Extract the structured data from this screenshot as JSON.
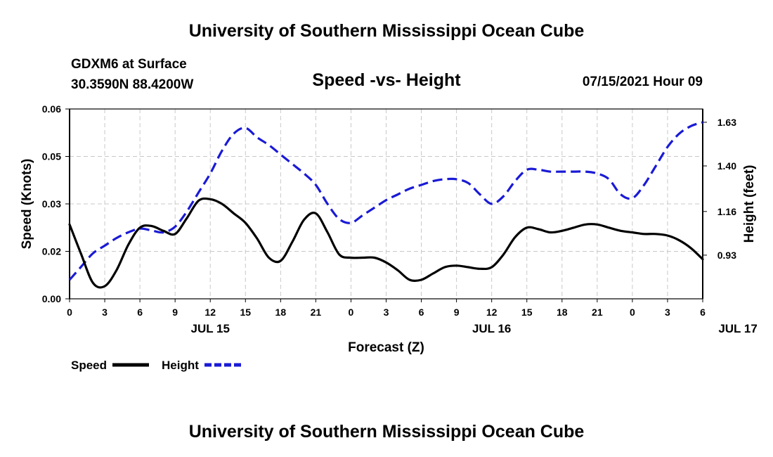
{
  "header": {
    "title": "University of Southern Mississippi Ocean Cube",
    "station": "GDXM6 at Surface",
    "coords": "30.3590N  88.4200W",
    "subtitle": "Speed -vs- Height",
    "datetime": "07/15/2021 Hour 09"
  },
  "footer": {
    "title": "University of Southern Mississippi Ocean Cube"
  },
  "chart_data": {
    "type": "line",
    "title": "Speed -vs- Height",
    "xlabel": "Forecast (Z)",
    "ylabel_left": "Speed (Knots)",
    "ylabel_right": "Height (feet)",
    "x_tick_labels": [
      "0",
      "3",
      "6",
      "9",
      "12",
      "15",
      "18",
      "21",
      "0",
      "3",
      "6",
      "9",
      "12",
      "15",
      "18",
      "21",
      "0",
      "3",
      "6"
    ],
    "day_labels": [
      {
        "label": "JUL 15",
        "hour": 12
      },
      {
        "label": "JUL 16",
        "hour": 36
      },
      {
        "label": "JUL 17",
        "hour": 57
      }
    ],
    "x_range": [
      0,
      54
    ],
    "y_left_ticks": [
      "0.00",
      "0.02",
      "0.03",
      "0.05",
      "0.06"
    ],
    "y_left_range": [
      0,
      0.06
    ],
    "y_right_ticks": [
      "0.93",
      "1.16",
      "1.40",
      "1.63"
    ],
    "y_right_range": [
      0.7,
      1.7
    ],
    "grid": true,
    "legend_position": "bottom-left",
    "series": [
      {
        "name": "Speed",
        "axis": "left",
        "color": "#000000",
        "dash": "solid",
        "x": [
          0,
          1,
          2,
          3,
          4,
          5,
          6,
          7,
          8,
          9,
          10,
          11,
          12,
          13,
          14,
          15,
          16,
          17,
          18,
          19,
          20,
          21,
          22,
          23,
          24,
          25,
          26,
          27,
          28,
          29,
          30,
          31,
          32,
          33,
          34,
          35,
          36,
          37,
          38,
          39,
          40,
          41,
          42,
          43,
          44,
          45,
          46,
          47,
          48,
          49,
          50,
          51,
          52,
          53,
          54
        ],
        "values": [
          0.0235,
          0.014,
          0.005,
          0.004,
          0.009,
          0.017,
          0.0225,
          0.023,
          0.0215,
          0.0205,
          0.0255,
          0.031,
          0.0315,
          0.03,
          0.027,
          0.024,
          0.019,
          0.013,
          0.012,
          0.018,
          0.025,
          0.027,
          0.021,
          0.014,
          0.013,
          0.013,
          0.013,
          0.0115,
          0.009,
          0.006,
          0.006,
          0.008,
          0.01,
          0.0105,
          0.01,
          0.0095,
          0.01,
          0.014,
          0.0195,
          0.0225,
          0.022,
          0.021,
          0.0215,
          0.0225,
          0.0235,
          0.0235,
          0.0225,
          0.0215,
          0.021,
          0.0205,
          0.0205,
          0.02,
          0.0185,
          0.016,
          0.0125
        ]
      },
      {
        "name": "Height",
        "axis": "right",
        "color": "#1a1ad6",
        "dash": "dashed",
        "x": [
          0,
          1,
          2,
          3,
          4,
          5,
          6,
          7,
          8,
          9,
          10,
          11,
          12,
          13,
          14,
          15,
          16,
          17,
          18,
          19,
          20,
          21,
          22,
          23,
          24,
          25,
          26,
          27,
          28,
          29,
          30,
          31,
          32,
          33,
          34,
          35,
          36,
          37,
          38,
          39,
          40,
          41,
          42,
          43,
          44,
          45,
          46,
          47,
          48,
          49,
          50,
          51,
          52,
          53,
          54
        ],
        "values": [
          0.8,
          0.87,
          0.94,
          0.98,
          1.02,
          1.05,
          1.07,
          1.06,
          1.05,
          1.08,
          1.16,
          1.26,
          1.36,
          1.48,
          1.57,
          1.6,
          1.55,
          1.51,
          1.46,
          1.41,
          1.36,
          1.3,
          1.2,
          1.12,
          1.1,
          1.14,
          1.18,
          1.22,
          1.25,
          1.28,
          1.3,
          1.32,
          1.33,
          1.33,
          1.31,
          1.25,
          1.2,
          1.24,
          1.32,
          1.38,
          1.38,
          1.37,
          1.37,
          1.37,
          1.37,
          1.36,
          1.33,
          1.25,
          1.23,
          1.3,
          1.4,
          1.5,
          1.57,
          1.61,
          1.63
        ]
      }
    ]
  }
}
